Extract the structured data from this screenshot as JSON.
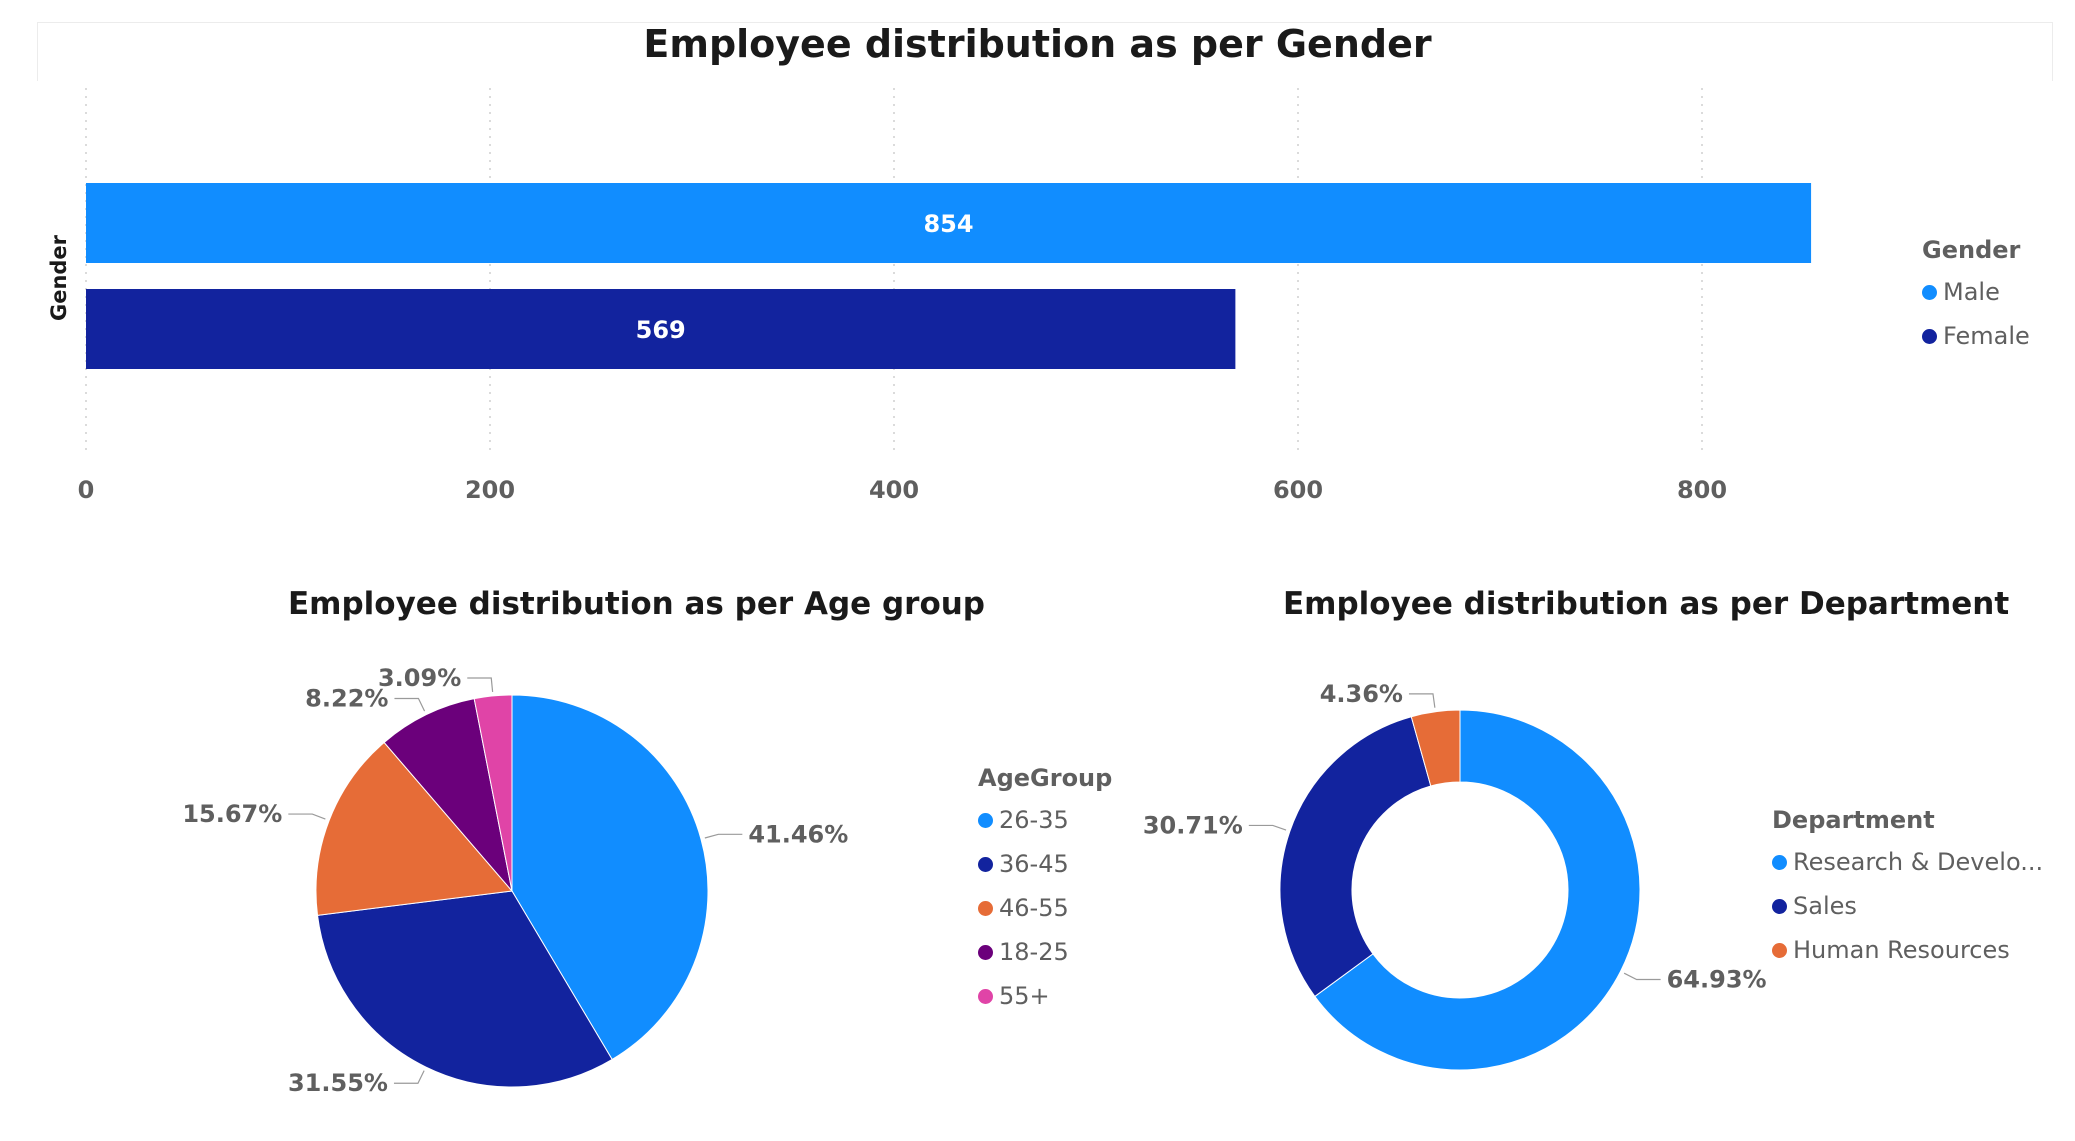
{
  "colors": {
    "blue": "#118DFF",
    "navy": "#12239E",
    "orange": "#E66C37",
    "purple": "#6B007B",
    "pink": "#E044A7",
    "grid": "#cfcfcf",
    "axis_text": "#5f5f5f",
    "label_text": "#5f5f5f"
  },
  "chart_data": [
    {
      "type": "bar",
      "orientation": "horizontal",
      "title": "Employee distribution as per Gender",
      "ylabel": "Gender",
      "categories": [
        "Male",
        "Female"
      ],
      "values": [
        854,
        569
      ],
      "xlim": [
        0,
        900
      ],
      "xticks": [
        0,
        200,
        400,
        600,
        800
      ],
      "grid": true,
      "legend": {
        "title": "Gender",
        "position": "right",
        "items": [
          {
            "label": "Male",
            "color": "#118DFF"
          },
          {
            "label": "Female",
            "color": "#12239E"
          }
        ]
      }
    },
    {
      "type": "pie",
      "title": "Employee distribution as per Age group",
      "slices": [
        {
          "label": "26-35",
          "value": 41.46,
          "display": "41.46%",
          "color": "#118DFF"
        },
        {
          "label": "36-45",
          "value": 31.55,
          "display": "31.55%",
          "color": "#12239E"
        },
        {
          "label": "46-55",
          "value": 15.67,
          "display": "15.67%",
          "color": "#E66C37"
        },
        {
          "label": "18-25",
          "value": 8.22,
          "display": "8.22%",
          "color": "#6B007B"
        },
        {
          "label": "55+",
          "value": 3.09,
          "display": "3.09%",
          "color": "#E044A7"
        }
      ],
      "legend": {
        "title": "AgeGroup",
        "position": "right",
        "items": [
          {
            "label": "26-35",
            "color": "#118DFF"
          },
          {
            "label": "36-45",
            "color": "#12239E"
          },
          {
            "label": "46-55",
            "color": "#E66C37"
          },
          {
            "label": "18-25",
            "color": "#6B007B"
          },
          {
            "label": "55+",
            "color": "#E044A7"
          }
        ]
      }
    },
    {
      "type": "donut",
      "title": "Employee distribution as per Department",
      "slices": [
        {
          "label": "Research & Develo...",
          "value": 64.93,
          "display": "64.93%",
          "color": "#118DFF"
        },
        {
          "label": "Sales",
          "value": 30.71,
          "display": "30.71%",
          "color": "#12239E"
        },
        {
          "label": "Human Resources",
          "value": 4.36,
          "display": "4.36%",
          "color": "#E66C37"
        }
      ],
      "legend": {
        "title": "Department",
        "position": "right",
        "items": [
          {
            "label": "Research & Develo...",
            "color": "#118DFF"
          },
          {
            "label": "Sales",
            "color": "#12239E"
          },
          {
            "label": "Human Resources",
            "color": "#E66C37"
          }
        ]
      }
    }
  ]
}
